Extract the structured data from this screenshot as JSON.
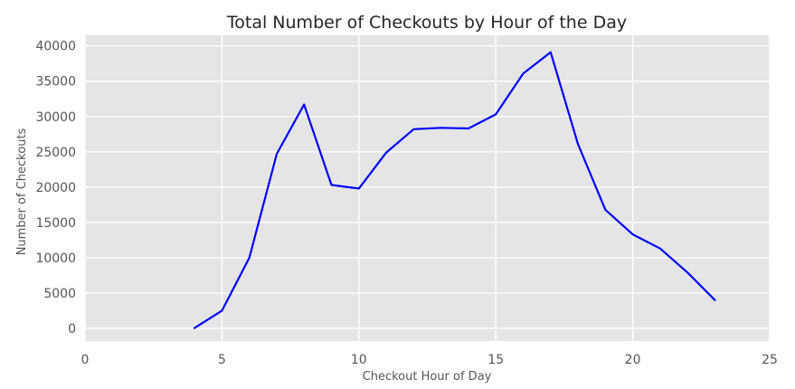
{
  "chart_data": {
    "type": "line",
    "title": "Total Number of Checkouts by Hour of the Day",
    "xlabel": "Checkout Hour of Day",
    "ylabel": "Number of Checkouts",
    "xlim": [
      0,
      25
    ],
    "ylim": [
      -1800,
      41500
    ],
    "xticks": [
      0,
      5,
      10,
      15,
      20,
      25
    ],
    "yticks": [
      0,
      5000,
      10000,
      15000,
      20000,
      25000,
      30000,
      35000,
      40000
    ],
    "grid": true,
    "background": "#e5e5e5",
    "grid_color": "#ffffff",
    "series": [
      {
        "color": "#0000ff",
        "x": [
          4,
          5,
          6,
          7,
          8,
          9,
          10,
          11,
          12,
          13,
          14,
          15,
          16,
          17,
          18,
          19,
          20,
          21,
          22,
          23
        ],
        "y": [
          50,
          2500,
          10000,
          24700,
          31700,
          20300,
          19800,
          24900,
          28200,
          28400,
          28300,
          30300,
          36100,
          39100,
          26100,
          16800,
          13300,
          11300,
          7900,
          4000
        ]
      }
    ]
  }
}
